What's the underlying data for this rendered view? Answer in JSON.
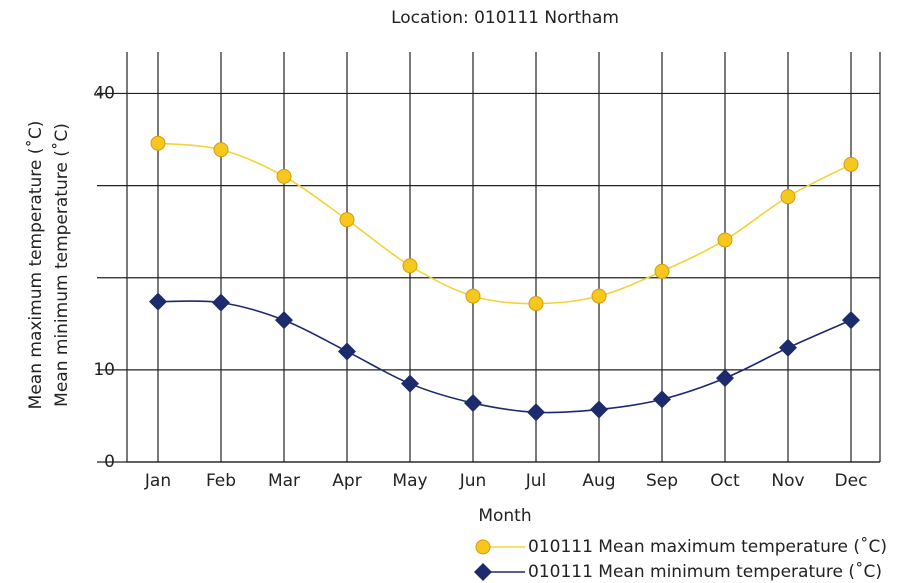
{
  "chart_data": {
    "type": "line",
    "title": "Location: 010111 Northam",
    "x_label": "Month",
    "y_label": [
      "Mean maximum temperature (˚C)",
      "Mean minimum temperature (˚C)"
    ],
    "categories": [
      "Jan",
      "Feb",
      "Mar",
      "Apr",
      "May",
      "Jun",
      "Jul",
      "Aug",
      "Sep",
      "Oct",
      "Nov",
      "Dec"
    ],
    "series": [
      {
        "name": "010111 Mean maximum temperature (˚C)",
        "color": "#f2d43a",
        "marker": "circle",
        "values": [
          34.6,
          33.9,
          31.0,
          26.3,
          21.3,
          18.0,
          17.2,
          18.0,
          20.7,
          24.1,
          28.8,
          32.3
        ]
      },
      {
        "name": "010111 Mean minimum temperature (˚C)",
        "color": "#1c2a6e",
        "marker": "diamond",
        "values": [
          17.4,
          17.3,
          15.4,
          12.0,
          8.5,
          6.4,
          5.4,
          5.7,
          6.8,
          9.1,
          12.4,
          15.4
        ]
      }
    ],
    "ylim": [
      0,
      44.5
    ],
    "yticks": [
      0,
      10,
      {
        "value": 20,
        "label": null
      },
      {
        "value": 30,
        "label": null
      },
      40
    ],
    "grid": true
  }
}
